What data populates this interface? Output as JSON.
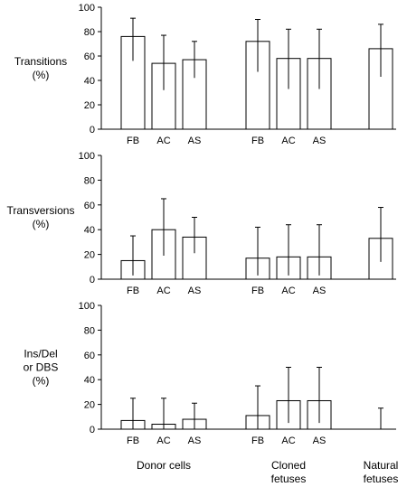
{
  "chart_data": [
    {
      "type": "bar",
      "ylabel": "Transitions (%)",
      "ylabel_lines": [
        "Transitions",
        "(%)"
      ],
      "ylim": [
        0,
        100
      ],
      "yticks": [
        "0",
        "20",
        "40",
        "60",
        "80",
        "100"
      ],
      "categories": [
        "FB",
        "AC",
        "AS",
        "FB",
        "AC",
        "AS",
        ""
      ],
      "groups": [
        "Donor cells",
        "Donor cells",
        "Donor cells",
        "Cloned fetuses",
        "Cloned fetuses",
        "Cloned fetuses",
        "Natural fetuses"
      ],
      "values": [
        76,
        54,
        57,
        72,
        58,
        58,
        66
      ],
      "error_low": [
        56,
        32,
        42,
        47,
        33,
        33,
        43
      ],
      "error_high": [
        91,
        77,
        72,
        90,
        82,
        82,
        86
      ]
    },
    {
      "type": "bar",
      "ylabel": "Transversions (%)",
      "ylabel_lines": [
        "Transversions",
        "(%)"
      ],
      "ylim": [
        0,
        100
      ],
      "yticks": [
        "0",
        "20",
        "40",
        "60",
        "80",
        "100"
      ],
      "categories": [
        "FB",
        "AC",
        "AS",
        "FB",
        "AC",
        "AS",
        ""
      ],
      "groups": [
        "Donor cells",
        "Donor cells",
        "Donor cells",
        "Cloned fetuses",
        "Cloned fetuses",
        "Cloned fetuses",
        "Natural fetuses"
      ],
      "values": [
        15,
        40,
        34,
        17,
        18,
        18,
        33
      ],
      "error_low": [
        3,
        19,
        21,
        3,
        3,
        3,
        14
      ],
      "error_high": [
        35,
        65,
        50,
        42,
        44,
        44,
        58
      ]
    },
    {
      "type": "bar",
      "ylabel": "Ins/Del or DBS (%)",
      "ylabel_lines": [
        "Ins/Del",
        "or DBS",
        "(%)"
      ],
      "ylim": [
        0,
        100
      ],
      "yticks": [
        "0",
        "20",
        "40",
        "60",
        "80",
        "100"
      ],
      "categories": [
        "FB",
        "AC",
        "AS",
        "FB",
        "AC",
        "AS",
        ""
      ],
      "groups": [
        "Donor cells",
        "Donor cells",
        "Donor cells",
        "Cloned fetuses",
        "Cloned fetuses",
        "Cloned fetuses",
        "Natural fetuses"
      ],
      "values": [
        7,
        4,
        8,
        11,
        23,
        23,
        0
      ],
      "error_low": [
        0,
        0,
        0,
        0,
        5,
        5,
        0
      ],
      "error_high": [
        25,
        25,
        21,
        35,
        50,
        50,
        17
      ]
    }
  ],
  "groups_labels": [
    {
      "lines": [
        "Donor cells"
      ]
    },
    {
      "lines": [
        "Cloned",
        "fetuses"
      ]
    },
    {
      "lines": [
        "Natural",
        "fetuses"
      ]
    }
  ]
}
